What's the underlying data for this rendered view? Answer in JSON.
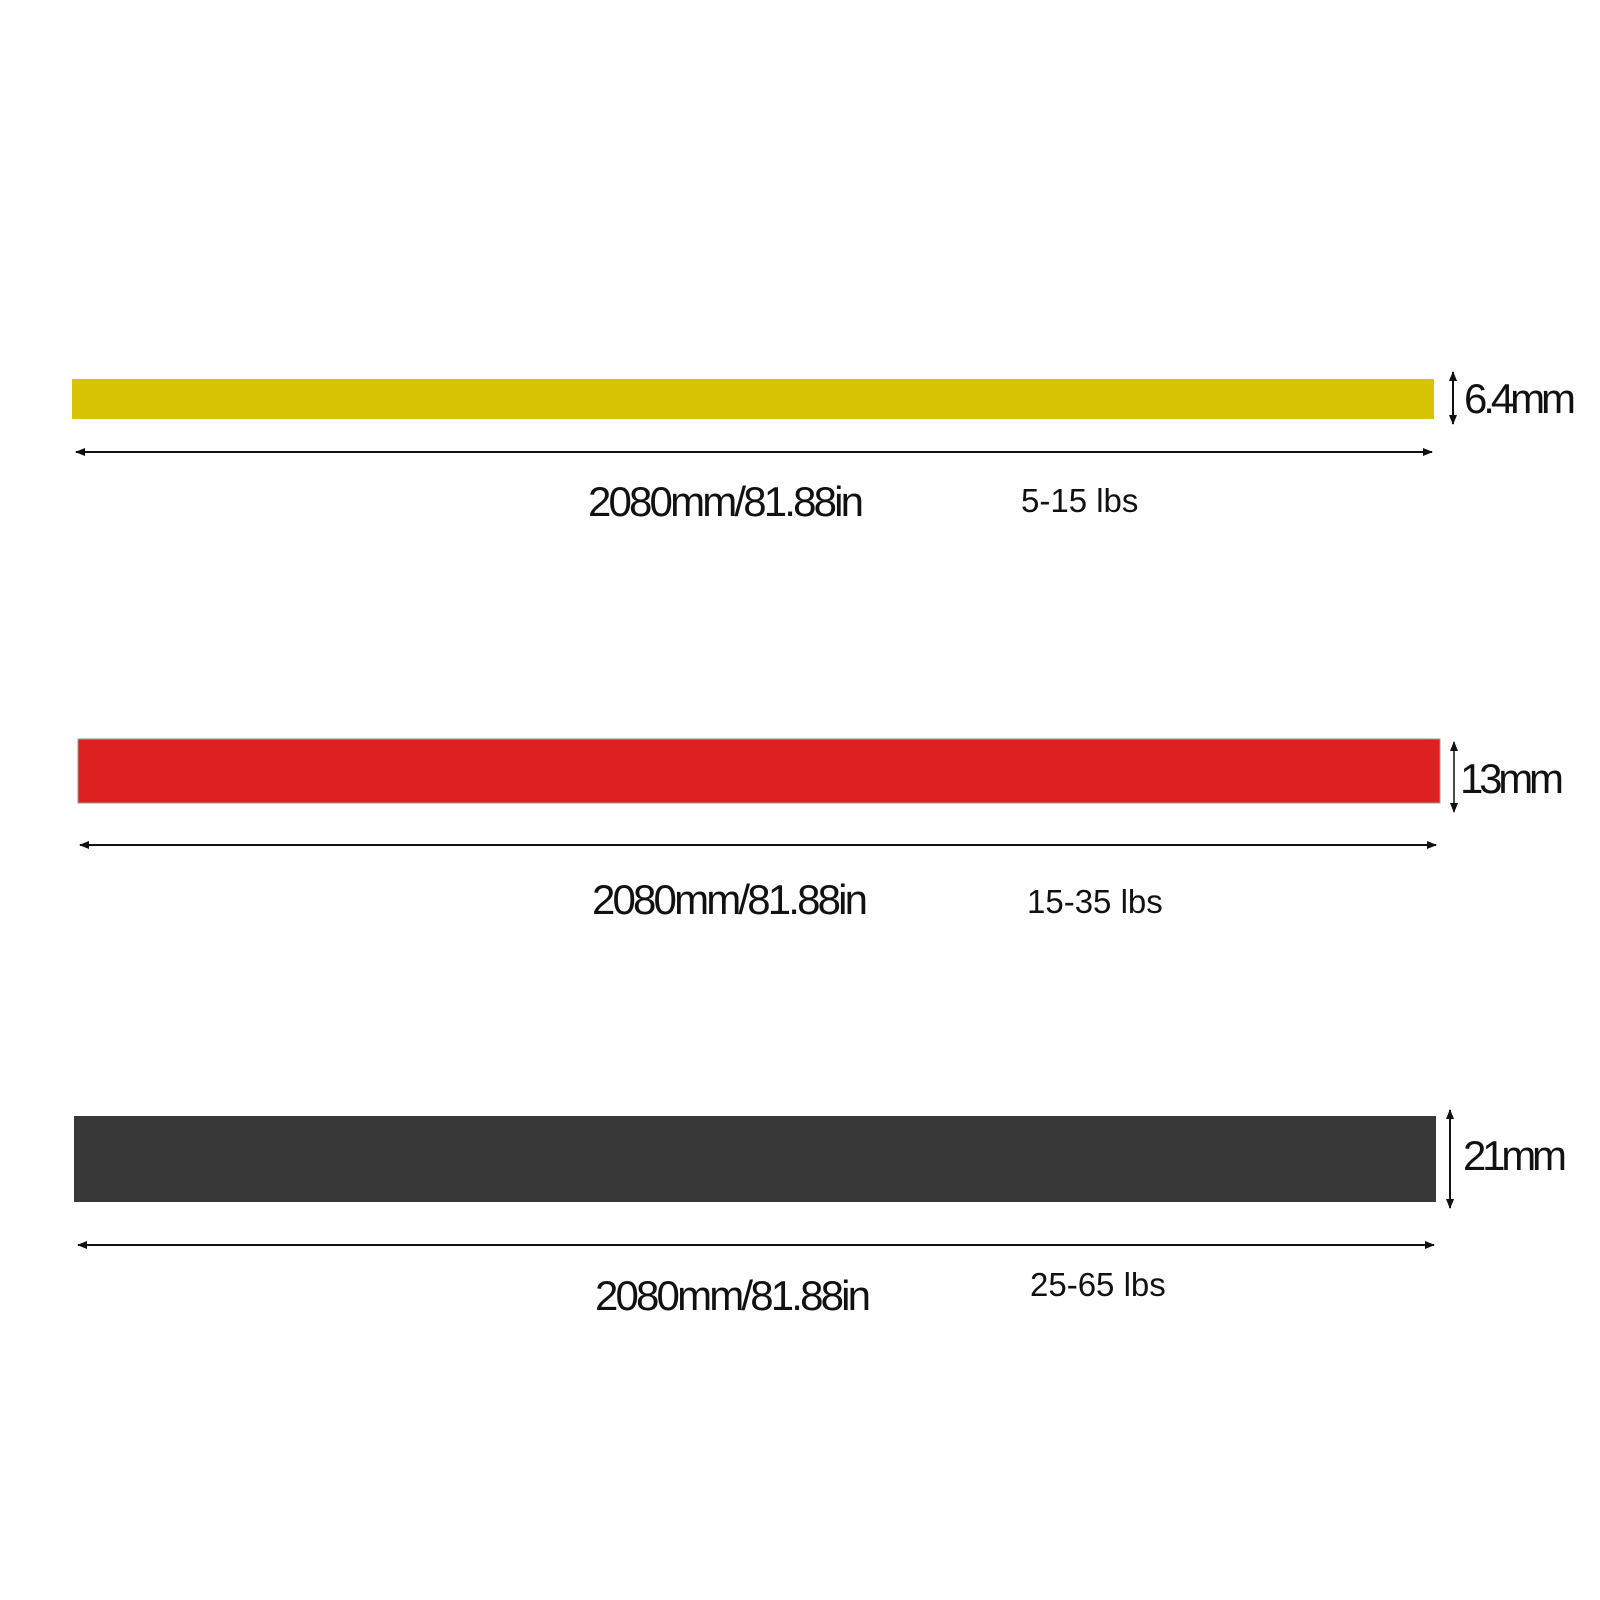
{
  "bands": [
    {
      "color": "#d6c404",
      "thickness_label": "6.4mm",
      "length_label": "2080mm/81.88in",
      "resistance_label": "5-15 lbs"
    },
    {
      "color": "#df2020",
      "thickness_label": "13mm",
      "length_label": "2080mm/81.88in",
      "resistance_label": "15-35 lbs"
    },
    {
      "color": "#383838",
      "thickness_label": "21mm",
      "length_label": "2080mm/81.88in",
      "resistance_label": "25-65 lbs"
    }
  ]
}
